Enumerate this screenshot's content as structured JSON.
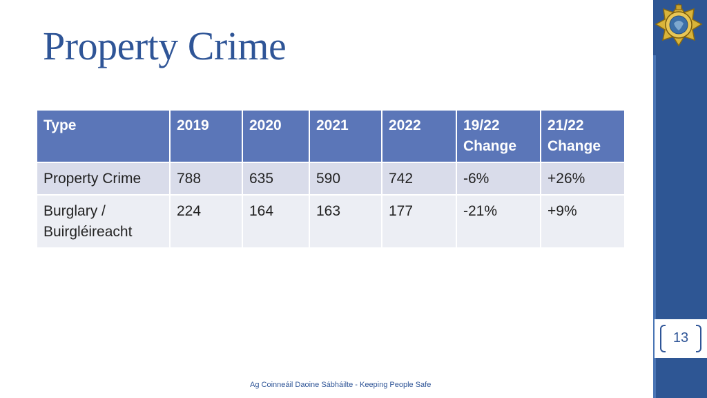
{
  "slide": {
    "title": "Property Crime",
    "page_number": "13",
    "footer": "Ag Coinneáil Daoine Sábháilte - Keeping People Safe"
  },
  "table": {
    "headers": [
      "Type",
      "2019",
      "2020",
      "2021",
      "2022",
      "19/22\nChange",
      "21/22\nChange"
    ],
    "rows": [
      [
        "Property Crime",
        "788",
        "635",
        "590",
        "742",
        "-6%",
        "+26%"
      ],
      [
        "Burglary /\nBuirgléireacht",
        "224",
        "164",
        "163",
        "177",
        "-21%",
        "+9%"
      ]
    ]
  },
  "colors": {
    "title": "#2f5597",
    "header_fill": "#5b76b8",
    "row_fill_1": "#d9dcea",
    "row_fill_2": "#eceef4",
    "side_bar": "#2e5694"
  },
  "icons": {
    "logo": "garda-badge-logo"
  }
}
